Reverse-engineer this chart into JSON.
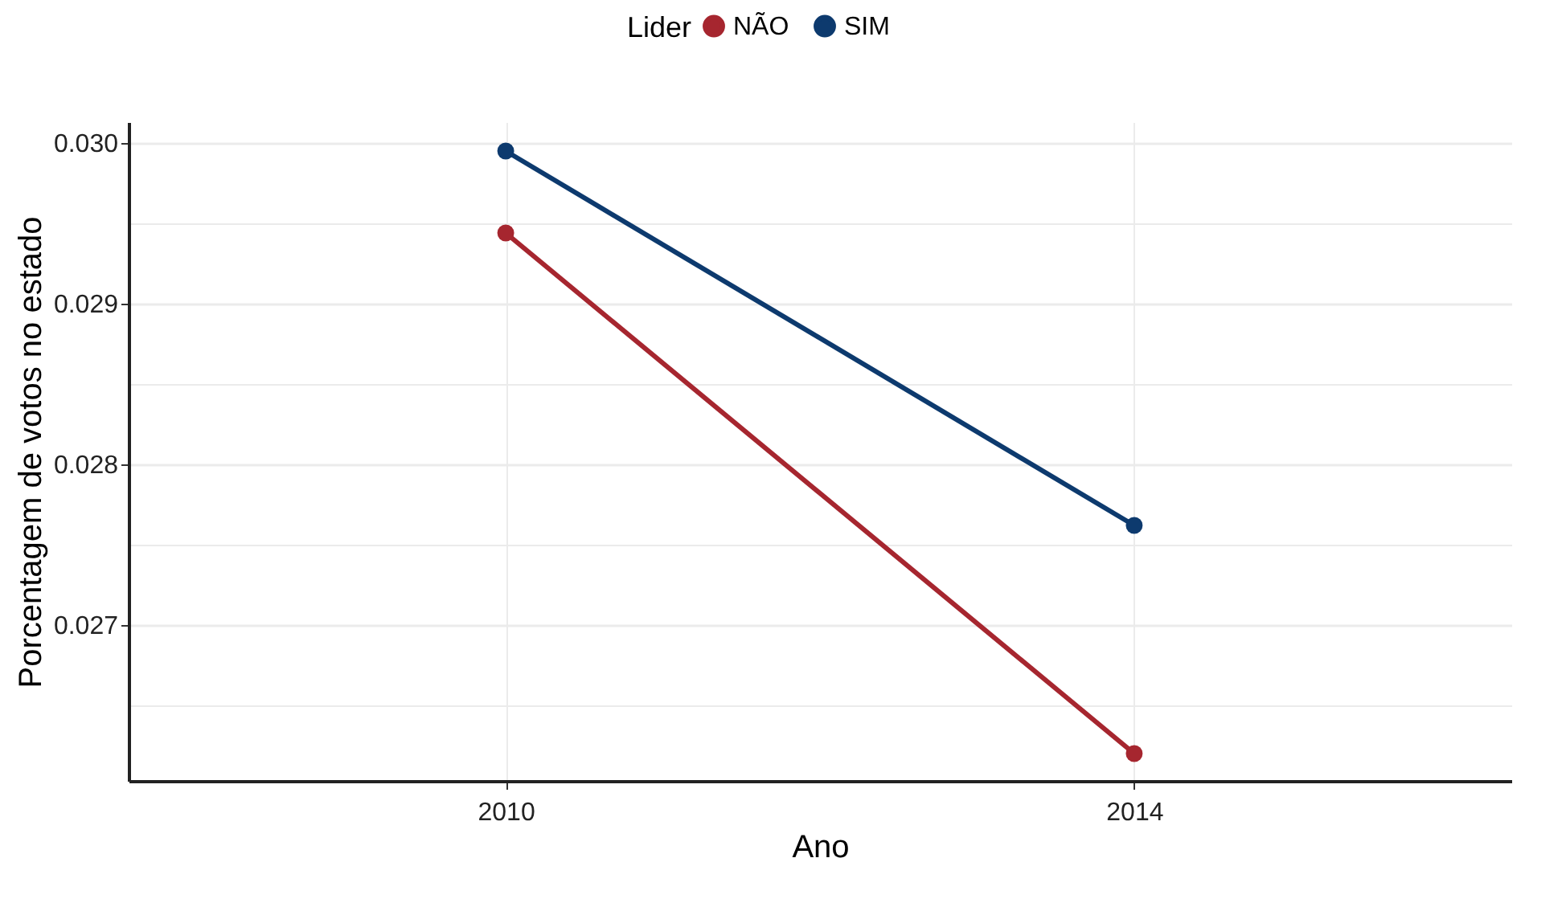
{
  "chart_data": {
    "type": "line",
    "xlabel": "Ano",
    "ylabel": "Porcentagem de votos no estado",
    "legend_title": "Lider",
    "legend": "top",
    "marker": "circle",
    "grid": true,
    "categories": [
      "2010",
      "2014"
    ],
    "series": [
      {
        "name": "NÃO",
        "color": "#a6262f",
        "values": [
          0.02944,
          0.0262
        ]
      },
      {
        "name": "SIM",
        "color": "#0d3a6e",
        "values": [
          0.02995,
          0.02762
        ]
      }
    ],
    "ylim": [
      0.02603,
      0.03013
    ],
    "yticks": [
      {
        "value": 0.0265,
        "label": null
      },
      {
        "value": 0.027,
        "label": "0.027"
      },
      {
        "value": 0.0275,
        "label": null
      },
      {
        "value": 0.028,
        "label": "0.028"
      },
      {
        "value": 0.0285,
        "label": null
      },
      {
        "value": 0.029,
        "label": "0.029"
      },
      {
        "value": 0.0295,
        "label": null
      },
      {
        "value": 0.03,
        "label": "0.030"
      }
    ]
  }
}
